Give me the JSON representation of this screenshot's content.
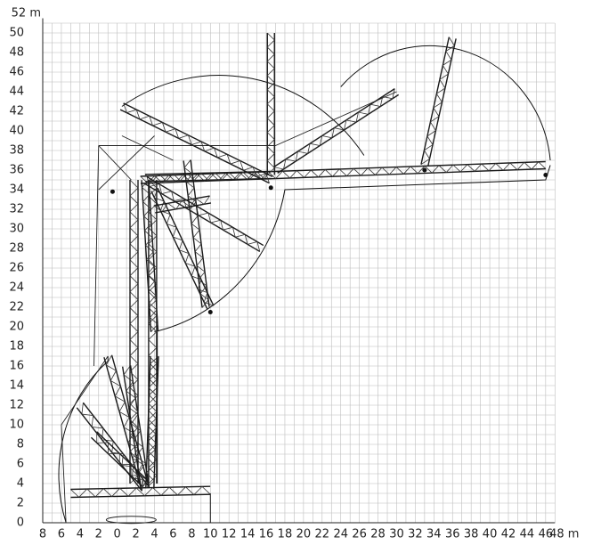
{
  "x_axis": {
    "ticks": [
      "8",
      "6",
      "4",
      "2",
      "0",
      "2",
      "4",
      "6",
      "8",
      "10",
      "12",
      "14",
      "16",
      "18",
      "20",
      "22",
      "24",
      "26",
      "28",
      "30",
      "32",
      "34",
      "36",
      "38",
      "40",
      "42",
      "44",
      "46",
      "48 m"
    ]
  },
  "y_axis": {
    "ticks": [
      "0",
      "2",
      "4",
      "6",
      "8",
      "10",
      "12",
      "14",
      "16",
      "18",
      "20",
      "22",
      "24",
      "26",
      "28",
      "30",
      "32",
      "34",
      "36",
      "38",
      "40",
      "42",
      "44",
      "46",
      "48",
      "50",
      "52 m"
    ]
  }
}
